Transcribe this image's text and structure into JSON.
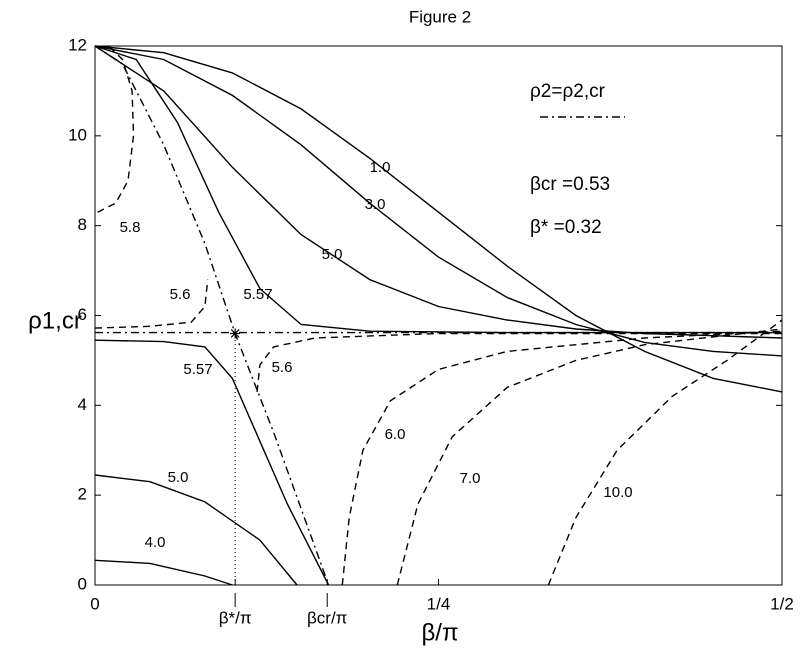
{
  "chart_data": {
    "type": "line",
    "title": "Figure 2",
    "xlabel": "β/π",
    "ylabel": "ρ1,cr",
    "xlim": [
      0,
      0.5
    ],
    "ylim": [
      0,
      12
    ],
    "xticks": [
      0,
      {
        "value": 0.102,
        "label": "β*/π"
      },
      {
        "value": 0.169,
        "label": "βcr/π"
      },
      {
        "value": 0.25,
        "label": "1/4"
      },
      {
        "value": 0.5,
        "label": "1/2"
      }
    ],
    "yticks": [
      0,
      2,
      4,
      6,
      8,
      10,
      12
    ],
    "star": {
      "x": 0.102,
      "y": 5.6
    },
    "annotations": [
      "βcr =0.53",
      "β* =0.32"
    ],
    "series": [
      {
        "name": "1.0",
        "color": "#000000",
        "style": "solid",
        "x": [
          0,
          0.05,
          0.1,
          0.15,
          0.2,
          0.25,
          0.3,
          0.35,
          0.4,
          0.45,
          0.5
        ],
        "values": [
          12,
          11.85,
          11.4,
          10.6,
          9.5,
          8.3,
          7.1,
          6.0,
          5.2,
          4.6,
          4.3
        ]
      },
      {
        "name": "3.0",
        "color": "#000000",
        "style": "solid",
        "x": [
          0,
          0.05,
          0.1,
          0.15,
          0.2,
          0.25,
          0.3,
          0.35,
          0.4,
          0.45,
          0.5
        ],
        "values": [
          12,
          11.7,
          10.9,
          9.8,
          8.5,
          7.3,
          6.4,
          5.8,
          5.4,
          5.2,
          5.1
        ]
      },
      {
        "name": "5.0",
        "color": "#000000",
        "style": "solid",
        "x": [
          0,
          0.05,
          0.1,
          0.15,
          0.2,
          0.25,
          0.3,
          0.35,
          0.4,
          0.45,
          0.5
        ],
        "values": [
          12,
          11.0,
          9.3,
          7.8,
          6.8,
          6.2,
          5.9,
          5.7,
          5.6,
          5.55,
          5.5
        ]
      },
      {
        "name": "5.57",
        "color": "#000000",
        "style": "solid",
        "x": [
          0,
          0.03,
          0.06,
          0.09,
          0.12,
          0.15,
          0.2,
          0.3,
          0.4,
          0.5
        ],
        "values": [
          12,
          11.7,
          10.3,
          8.3,
          6.6,
          5.8,
          5.65,
          5.62,
          5.62,
          5.62
        ]
      },
      {
        "name": "5.57",
        "color": "#000000",
        "style": "solid",
        "x": [
          0,
          0.05,
          0.08,
          0.1,
          0.12,
          0.14,
          0.17
        ],
        "values": [
          5.45,
          5.42,
          5.3,
          4.6,
          3.2,
          1.8,
          0
        ]
      },
      {
        "name": "5.0",
        "color": "#000000",
        "style": "solid",
        "x": [
          0,
          0.04,
          0.08,
          0.12,
          0.147
        ],
        "values": [
          2.45,
          2.3,
          1.85,
          1.0,
          0
        ]
      },
      {
        "name": "4.0",
        "color": "#000000",
        "style": "solid",
        "x": [
          0,
          0.04,
          0.08,
          0.1
        ],
        "values": [
          0.55,
          0.48,
          0.2,
          0
        ]
      },
      {
        "name": "5.8",
        "color": "#000000",
        "style": "dashed",
        "x": [
          0.002,
          0.015,
          0.024,
          0.028,
          0.027,
          0.02,
          0.01
        ],
        "values": [
          8.3,
          8.5,
          9.0,
          10,
          11,
          11.7,
          12
        ]
      },
      {
        "name": "5.6",
        "color": "#000000",
        "style": "dashed",
        "x": [
          0,
          0.04,
          0.07,
          0.08,
          0.082,
          null,
          0.118,
          0.12,
          0.13,
          0.16,
          0.25,
          0.5
        ],
        "values": [
          5.72,
          5.76,
          5.85,
          6.2,
          6.8,
          null,
          4.3,
          4.9,
          5.3,
          5.5,
          5.6,
          5.6
        ]
      },
      {
        "name": "6.0",
        "color": "#000000",
        "style": "dashed",
        "x": [
          0.18,
          0.185,
          0.195,
          0.215,
          0.25,
          0.3,
          0.4,
          0.5
        ],
        "values": [
          0,
          1.5,
          3,
          4.1,
          4.8,
          5.2,
          5.5,
          5.65
        ]
      },
      {
        "name": "7.0",
        "color": "#000000",
        "style": "dashed",
        "x": [
          0.22,
          0.235,
          0.26,
          0.3,
          0.35,
          0.4,
          0.5
        ],
        "values": [
          0,
          1.8,
          3.3,
          4.4,
          5.0,
          5.35,
          5.7
        ]
      },
      {
        "name": "10.0",
        "color": "#000000",
        "style": "dashed",
        "x": [
          0.33,
          0.35,
          0.38,
          0.42,
          0.46,
          0.5
        ],
        "values": [
          0,
          1.5,
          3.0,
          4.2,
          5.0,
          5.9
        ]
      },
      {
        "name": "ρ2=ρ2,cr",
        "color": "#000000",
        "style": "dashdot",
        "x": [
          0,
          0.02,
          0.05,
          0.08,
          0.102,
          0.13,
          0.17,
          null,
          0,
          0.5
        ],
        "values": [
          12,
          11.6,
          9.8,
          7.6,
          5.6,
          3.4,
          0,
          null,
          5.62,
          5.62
        ]
      }
    ]
  }
}
